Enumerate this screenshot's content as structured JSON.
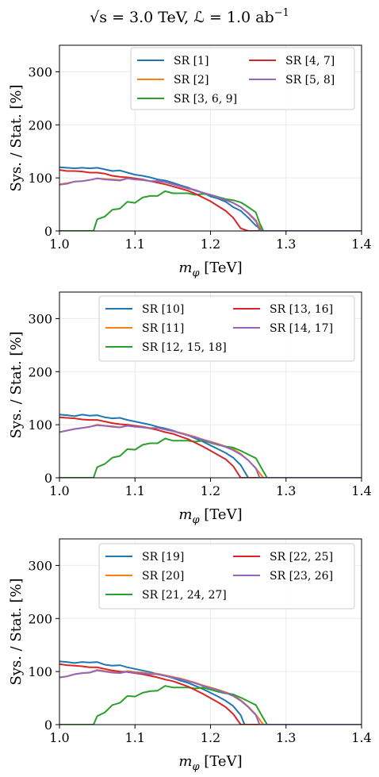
{
  "figure": {
    "title": "√s = 3.0 TeV, ℒ = 1.0 ab⁻¹",
    "title_parts": {
      "sqrt": "√",
      "s_expr": "s = 3.0 TeV, ℒ = 1.0 ab",
      "sup": "−1"
    }
  },
  "colors": {
    "blue": "#1f77b4",
    "orange": "#ff7f0e",
    "green": "#2ca02c",
    "red": "#d62728",
    "purple": "#9467bd"
  },
  "chart_data": [
    {
      "type": "line",
      "xlabel": "m_φ [TeV]",
      "ylabel": "Sys. / Stat. [%]",
      "xlim": [
        1.0,
        1.4
      ],
      "ylim": [
        0,
        350
      ],
      "xticks": [
        "1.0",
        "1.1",
        "1.2",
        "1.3",
        "1.4"
      ],
      "yticks": [
        "0",
        "100",
        "200",
        "300"
      ],
      "grid": true,
      "legend_placement": "top-right",
      "series": [
        {
          "name": "SR [1]",
          "color": "blue",
          "x": [
            1.0,
            1.01,
            1.02,
            1.03,
            1.04,
            1.05,
            1.06,
            1.07,
            1.08,
            1.09,
            1.1,
            1.11,
            1.12,
            1.13,
            1.14,
            1.15,
            1.16,
            1.17,
            1.18,
            1.19,
            1.2,
            1.21,
            1.22,
            1.23,
            1.24,
            1.25,
            1.26,
            1.27,
            1.3,
            1.4
          ],
          "y": [
            120,
            119,
            118,
            119,
            118,
            119,
            116,
            113,
            114,
            110,
            106,
            104,
            101,
            97,
            95,
            91,
            86,
            82,
            76,
            72,
            65,
            61,
            55,
            45,
            38,
            25,
            10,
            0,
            0,
            0
          ]
        },
        {
          "name": "SR [2]",
          "color": "orange",
          "x": [
            1.0,
            1.01,
            1.02,
            1.03,
            1.04,
            1.05,
            1.06,
            1.07,
            1.08,
            1.09,
            1.1,
            1.11,
            1.12,
            1.13,
            1.14,
            1.15,
            1.16,
            1.17,
            1.18,
            1.19,
            1.2,
            1.21,
            1.22,
            1.23,
            1.24,
            1.25,
            1.26,
            1.27,
            1.3,
            1.4
          ],
          "y": [
            88,
            90,
            93,
            94,
            96,
            99,
            98,
            97,
            96,
            99,
            97,
            96,
            94,
            94,
            92,
            88,
            84,
            80,
            77,
            72,
            68,
            64,
            59,
            53,
            45,
            33,
            18,
            0,
            0,
            0
          ]
        },
        {
          "name": "SR [3, 6, 9]",
          "color": "green",
          "x": [
            1.0,
            1.01,
            1.02,
            1.03,
            1.04,
            1.045,
            1.05,
            1.06,
            1.07,
            1.08,
            1.09,
            1.1,
            1.11,
            1.12,
            1.13,
            1.14,
            1.15,
            1.16,
            1.17,
            1.18,
            1.19,
            1.2,
            1.21,
            1.22,
            1.23,
            1.24,
            1.25,
            1.26,
            1.265,
            1.27,
            1.3,
            1.4
          ],
          "y": [
            0,
            0,
            0,
            0,
            0,
            0,
            22,
            27,
            40,
            42,
            55,
            53,
            63,
            66,
            66,
            75,
            71,
            71,
            71,
            68,
            70,
            68,
            64,
            60,
            58,
            54,
            45,
            35,
            15,
            0,
            0,
            0
          ]
        },
        {
          "name": "SR [4, 7]",
          "color": "red",
          "x": [
            1.0,
            1.01,
            1.02,
            1.03,
            1.04,
            1.05,
            1.06,
            1.07,
            1.08,
            1.09,
            1.1,
            1.11,
            1.12,
            1.13,
            1.14,
            1.15,
            1.16,
            1.17,
            1.18,
            1.19,
            1.2,
            1.21,
            1.22,
            1.23,
            1.24,
            1.25,
            1.3,
            1.4
          ],
          "y": [
            115,
            113,
            113,
            112,
            110,
            110,
            108,
            104,
            102,
            101,
            99,
            97,
            94,
            91,
            88,
            84,
            80,
            76,
            70,
            63,
            56,
            47,
            38,
            25,
            5,
            0,
            0,
            0
          ]
        },
        {
          "name": "SR [5, 8]",
          "color": "purple",
          "x": [
            1.0,
            1.01,
            1.02,
            1.03,
            1.04,
            1.05,
            1.06,
            1.07,
            1.08,
            1.09,
            1.1,
            1.11,
            1.12,
            1.13,
            1.14,
            1.15,
            1.16,
            1.17,
            1.18,
            1.19,
            1.2,
            1.21,
            1.22,
            1.23,
            1.24,
            1.25,
            1.26,
            1.265,
            1.3,
            1.4
          ],
          "y": [
            87,
            89,
            93,
            94,
            96,
            99,
            97,
            96,
            95,
            99,
            97,
            96,
            94,
            94,
            92,
            88,
            84,
            80,
            77,
            72,
            68,
            63,
            58,
            53,
            45,
            34,
            20,
            0,
            0,
            0
          ]
        }
      ],
      "legend_order": [
        0,
        3,
        1,
        4,
        2
      ]
    },
    {
      "type": "line",
      "xlabel": "m_φ [TeV]",
      "ylabel": "Sys. / Stat. [%]",
      "xlim": [
        1.0,
        1.4
      ],
      "ylim": [
        0,
        350
      ],
      "xticks": [
        "1.0",
        "1.1",
        "1.2",
        "1.3",
        "1.4"
      ],
      "yticks": [
        "0",
        "100",
        "200",
        "300"
      ],
      "grid": true,
      "legend_placement": "top-right",
      "series": [
        {
          "name": "SR [10]",
          "color": "blue",
          "x": [
            1.0,
            1.01,
            1.02,
            1.03,
            1.04,
            1.05,
            1.06,
            1.07,
            1.08,
            1.09,
            1.1,
            1.11,
            1.12,
            1.13,
            1.14,
            1.15,
            1.16,
            1.17,
            1.18,
            1.19,
            1.2,
            1.21,
            1.22,
            1.23,
            1.24,
            1.25,
            1.3,
            1.4
          ],
          "y": [
            119,
            118,
            116,
            119,
            117,
            118,
            114,
            112,
            113,
            109,
            106,
            103,
            100,
            96,
            93,
            89,
            84,
            80,
            74,
            68,
            61,
            54,
            47,
            38,
            24,
            0,
            0,
            0
          ]
        },
        {
          "name": "SR [11]",
          "color": "orange",
          "x": [
            1.0,
            1.01,
            1.02,
            1.03,
            1.04,
            1.05,
            1.06,
            1.07,
            1.08,
            1.09,
            1.1,
            1.11,
            1.12,
            1.13,
            1.14,
            1.15,
            1.16,
            1.17,
            1.18,
            1.19,
            1.2,
            1.21,
            1.22,
            1.23,
            1.24,
            1.25,
            1.26,
            1.27,
            1.3,
            1.4
          ],
          "y": [
            86,
            89,
            92,
            94,
            96,
            100,
            98,
            97,
            95,
            99,
            97,
            96,
            94,
            94,
            91,
            88,
            85,
            81,
            77,
            72,
            68,
            64,
            59,
            54,
            45,
            33,
            18,
            0,
            0,
            0
          ]
        },
        {
          "name": "SR [12, 15, 18]",
          "color": "green",
          "x": [
            1.0,
            1.01,
            1.02,
            1.03,
            1.04,
            1.045,
            1.05,
            1.06,
            1.07,
            1.08,
            1.09,
            1.1,
            1.11,
            1.12,
            1.13,
            1.14,
            1.15,
            1.16,
            1.17,
            1.18,
            1.19,
            1.2,
            1.21,
            1.22,
            1.23,
            1.24,
            1.25,
            1.26,
            1.27,
            1.275,
            1.3,
            1.4
          ],
          "y": [
            0,
            0,
            0,
            0,
            0,
            0,
            20,
            26,
            38,
            41,
            54,
            53,
            62,
            65,
            65,
            74,
            70,
            70,
            70,
            68,
            70,
            66,
            62,
            59,
            57,
            51,
            44,
            37,
            12,
            0,
            0,
            0
          ]
        },
        {
          "name": "SR [13, 16]",
          "color": "red",
          "x": [
            1.0,
            1.01,
            1.02,
            1.03,
            1.04,
            1.05,
            1.06,
            1.07,
            1.08,
            1.09,
            1.1,
            1.11,
            1.12,
            1.13,
            1.14,
            1.15,
            1.16,
            1.17,
            1.18,
            1.19,
            1.2,
            1.21,
            1.22,
            1.23,
            1.24,
            1.3,
            1.4
          ],
          "y": [
            114,
            113,
            112,
            110,
            109,
            109,
            106,
            103,
            101,
            100,
            98,
            96,
            93,
            90,
            86,
            83,
            78,
            73,
            66,
            59,
            51,
            43,
            35,
            22,
            0,
            0,
            0
          ]
        },
        {
          "name": "SR [14, 17]",
          "color": "purple",
          "x": [
            1.0,
            1.01,
            1.02,
            1.03,
            1.04,
            1.05,
            1.06,
            1.07,
            1.08,
            1.09,
            1.1,
            1.11,
            1.12,
            1.13,
            1.14,
            1.15,
            1.16,
            1.17,
            1.18,
            1.19,
            1.2,
            1.21,
            1.22,
            1.23,
            1.24,
            1.25,
            1.26,
            1.265,
            1.3,
            1.4
          ],
          "y": [
            86,
            89,
            92,
            94,
            96,
            99,
            98,
            96,
            95,
            98,
            96,
            95,
            93,
            94,
            91,
            88,
            84,
            80,
            76,
            72,
            67,
            63,
            58,
            52,
            44,
            33,
            18,
            0,
            0,
            0
          ]
        }
      ],
      "legend_order": [
        0,
        3,
        1,
        4,
        2
      ]
    },
    {
      "type": "line",
      "xlabel": "m_φ [TeV]",
      "ylabel": "Sys. / Stat. [%]",
      "xlim": [
        1.0,
        1.4
      ],
      "ylim": [
        0,
        350
      ],
      "xticks": [
        "1.0",
        "1.1",
        "1.2",
        "1.3",
        "1.4"
      ],
      "yticks": [
        "0",
        "100",
        "200",
        "300"
      ],
      "grid": true,
      "legend_placement": "top-right",
      "series": [
        {
          "name": "SR [19]",
          "color": "blue",
          "x": [
            1.0,
            1.01,
            1.02,
            1.03,
            1.04,
            1.05,
            1.06,
            1.07,
            1.08,
            1.09,
            1.1,
            1.11,
            1.12,
            1.13,
            1.14,
            1.15,
            1.16,
            1.17,
            1.18,
            1.19,
            1.2,
            1.21,
            1.22,
            1.23,
            1.24,
            1.245,
            1.3,
            1.4
          ],
          "y": [
            119,
            118,
            116,
            118,
            117,
            118,
            113,
            111,
            112,
            108,
            105,
            102,
            99,
            95,
            92,
            88,
            83,
            79,
            73,
            67,
            60,
            53,
            45,
            35,
            18,
            0,
            0,
            0
          ]
        },
        {
          "name": "SR [20]",
          "color": "orange",
          "x": [
            1.0,
            1.01,
            1.02,
            1.03,
            1.04,
            1.05,
            1.06,
            1.07,
            1.08,
            1.09,
            1.1,
            1.11,
            1.12,
            1.13,
            1.14,
            1.15,
            1.16,
            1.17,
            1.18,
            1.19,
            1.2,
            1.21,
            1.22,
            1.23,
            1.24,
            1.25,
            1.26,
            1.27,
            1.3,
            1.4
          ],
          "y": [
            89,
            91,
            95,
            97,
            98,
            103,
            101,
            99,
            98,
            101,
            99,
            98,
            96,
            96,
            93,
            90,
            87,
            83,
            79,
            74,
            70,
            66,
            61,
            56,
            46,
            34,
            19,
            0,
            0,
            0
          ]
        },
        {
          "name": "SR [21, 24, 27]",
          "color": "green",
          "x": [
            1.0,
            1.01,
            1.02,
            1.03,
            1.04,
            1.045,
            1.05,
            1.06,
            1.07,
            1.08,
            1.09,
            1.1,
            1.11,
            1.12,
            1.13,
            1.14,
            1.15,
            1.16,
            1.17,
            1.18,
            1.19,
            1.2,
            1.21,
            1.22,
            1.23,
            1.24,
            1.25,
            1.26,
            1.27,
            1.275,
            1.3,
            1.4
          ],
          "y": [
            0,
            0,
            0,
            0,
            0,
            0,
            16,
            23,
            37,
            41,
            54,
            53,
            60,
            63,
            64,
            73,
            70,
            70,
            70,
            68,
            70,
            66,
            62,
            59,
            57,
            51,
            44,
            37,
            12,
            0,
            0,
            0
          ]
        },
        {
          "name": "SR [22, 25]",
          "color": "red",
          "x": [
            1.0,
            1.01,
            1.02,
            1.03,
            1.04,
            1.05,
            1.06,
            1.07,
            1.08,
            1.09,
            1.1,
            1.11,
            1.12,
            1.13,
            1.14,
            1.15,
            1.16,
            1.17,
            1.18,
            1.19,
            1.2,
            1.21,
            1.22,
            1.23,
            1.24,
            1.3,
            1.4
          ],
          "y": [
            114,
            112,
            111,
            110,
            108,
            108,
            105,
            102,
            100,
            99,
            97,
            95,
            92,
            89,
            85,
            82,
            77,
            72,
            65,
            58,
            50,
            42,
            33,
            20,
            0,
            0,
            0
          ]
        },
        {
          "name": "SR [23, 26]",
          "color": "purple",
          "x": [
            1.0,
            1.01,
            1.02,
            1.03,
            1.04,
            1.05,
            1.06,
            1.07,
            1.08,
            1.09,
            1.1,
            1.11,
            1.12,
            1.13,
            1.14,
            1.15,
            1.16,
            1.17,
            1.18,
            1.19,
            1.2,
            1.21,
            1.22,
            1.23,
            1.24,
            1.25,
            1.26,
            1.265,
            1.3,
            1.4
          ],
          "y": [
            89,
            91,
            95,
            97,
            98,
            102,
            100,
            98,
            97,
            100,
            98,
            97,
            95,
            95,
            92,
            89,
            86,
            82,
            78,
            73,
            69,
            65,
            60,
            54,
            45,
            33,
            18,
            0,
            0,
            0
          ]
        }
      ],
      "legend_order": [
        0,
        3,
        1,
        4,
        2
      ]
    }
  ]
}
